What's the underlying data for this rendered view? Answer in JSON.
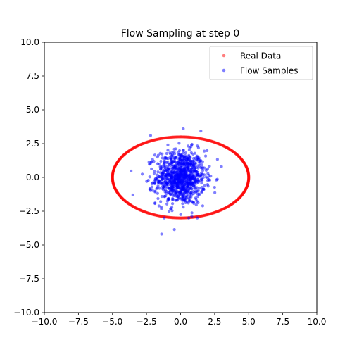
{
  "chart_data": {
    "type": "scatter",
    "title": "Flow Sampling at step 0",
    "xlabel": "",
    "ylabel": "",
    "xlim": [
      -10,
      10
    ],
    "ylim": [
      -10,
      10
    ],
    "xticks": [
      "−10.0",
      "−7.5",
      "−5.0",
      "−2.5",
      "0.0",
      "2.5",
      "5.0",
      "7.5",
      "10.0"
    ],
    "yticks": [
      "−10.0",
      "−7.5",
      "−5.0",
      "−2.5",
      "0.0",
      "2.5",
      "5.0",
      "7.5",
      "10.0"
    ],
    "grid": false,
    "legend": {
      "placement": "top-right"
    },
    "series": [
      {
        "name": "Real Data",
        "color": "#ff0000",
        "marker_alpha": 0.5,
        "shape": "ellipse",
        "center": [
          0,
          0
        ],
        "semi_axes": [
          5,
          3
        ],
        "count": 500
      },
      {
        "name": "Flow Samples",
        "color": "#0000ff",
        "marker_alpha": 0.5,
        "shape": "gaussian-cloud",
        "center": [
          0,
          0
        ],
        "std": [
          0.9,
          1.0
        ],
        "count": 1000,
        "notable_points": [
          [
            -2.2,
            3.1
          ],
          [
            0.2,
            3.6
          ],
          [
            -3.5,
            -1.3
          ],
          [
            3.0,
            0.8
          ],
          [
            -1.2,
            -3.0
          ],
          [
            0.6,
            -3.0
          ]
        ]
      }
    ]
  }
}
